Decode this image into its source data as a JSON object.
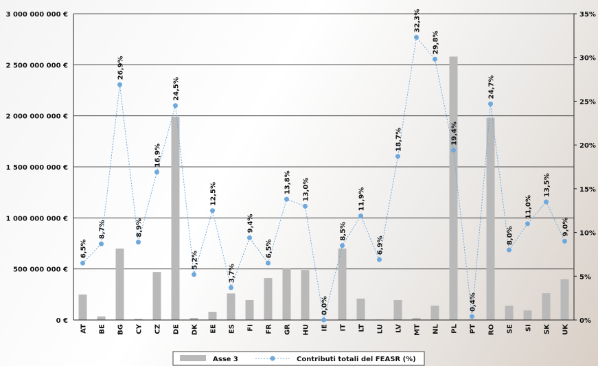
{
  "chart_data": {
    "type": "bar-line",
    "categories": [
      "AT",
      "BE",
      "BG",
      "CY",
      "CZ",
      "DE",
      "DK",
      "EE",
      "ES",
      "FI",
      "FR",
      "GR",
      "HU",
      "IE",
      "IT",
      "LT",
      "LU",
      "LV",
      "MT",
      "NL",
      "PL",
      "PT",
      "RO",
      "SE",
      "SI",
      "SK",
      "UK"
    ],
    "series": [
      {
        "name": "Asse 3",
        "type": "bar",
        "color": "#b9b9b9",
        "values": [
          250000000,
          35000000,
          700000000,
          10000000,
          470000000,
          1990000000,
          20000000,
          80000000,
          260000000,
          195000000,
          410000000,
          510000000,
          490000000,
          0,
          700000000,
          210000000,
          5000000,
          195000000,
          20000000,
          140000000,
          2580000000,
          5000000,
          1980000000,
          140000000,
          94000000,
          262000000,
          400000000
        ]
      },
      {
        "name": "Contributi totali del FEASR (%)",
        "type": "line",
        "axis": "y2",
        "color": "#6fa8dc",
        "values": [
          6.5,
          8.7,
          26.9,
          8.9,
          16.9,
          24.5,
          5.2,
          12.5,
          3.7,
          9.4,
          6.5,
          13.8,
          13.0,
          0.0,
          8.5,
          11.9,
          6.9,
          18.7,
          32.3,
          29.8,
          19.4,
          0.4,
          24.7,
          8.0,
          11.0,
          13.5,
          9.0
        ],
        "value_labels": [
          "6,5%",
          "8,7%",
          "26,9%",
          "8,9%",
          "16,9%",
          "24,5%",
          "5,2%",
          "12,5%",
          "3,7%",
          "9,4%",
          "6,5%",
          "13,8%",
          "13,0%",
          "0,0%",
          "8,5%",
          "11,9%",
          "6,9%",
          "18,7%",
          "32,3%",
          "29,8%",
          "19,4%",
          "0,4%",
          "24,7%",
          "8,0%",
          "11,0%",
          "13,5%",
          "9,0%"
        ]
      }
    ],
    "ylim": [
      0,
      3000000000
    ],
    "yticks": [
      {
        "value": 0,
        "label": "0 €"
      },
      {
        "value": 500000000,
        "label": "500 000 000 €"
      },
      {
        "value": 1000000000,
        "label": "1 000 000 000 €"
      },
      {
        "value": 1500000000,
        "label": "1 500 000 000 €"
      },
      {
        "value": 2000000000,
        "label": "2 000 000 000 €"
      },
      {
        "value": 2500000000,
        "label": "2 500 000 000 €"
      },
      {
        "value": 3000000000,
        "label": "3 000 000 000 €"
      }
    ],
    "y2lim": [
      0,
      35
    ],
    "y2ticks": [
      {
        "value": 0,
        "label": "0%"
      },
      {
        "value": 5,
        "label": "5%"
      },
      {
        "value": 10,
        "label": "10%"
      },
      {
        "value": 15,
        "label": "15%"
      },
      {
        "value": 20,
        "label": "20%"
      },
      {
        "value": 25,
        "label": "25%"
      },
      {
        "value": 30,
        "label": "30%"
      },
      {
        "value": 35,
        "label": "35%"
      }
    ],
    "grid": true
  }
}
